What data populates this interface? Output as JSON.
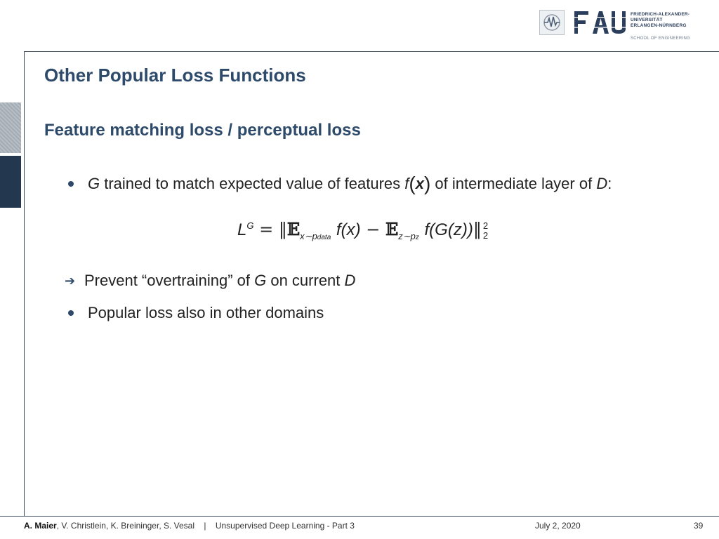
{
  "header": {
    "logo": {
      "letters": "FAU",
      "lines": [
        "FRIEDRICH-ALEXANDER-",
        "UNIVERSITÄT",
        "ERLANGEN-NÜRNBERG"
      ],
      "school": "SCHOOL OF ENGINEERING",
      "brand_color": "#2b3f5c"
    }
  },
  "slide": {
    "title": "Other Popular Loss Functions",
    "subtitle": "Feature matching loss / perceptual loss",
    "bullet1": {
      "g": "G",
      "text_a": " trained to match expected value of features ",
      "f": "f",
      "x": "x",
      "text_b": " of intermediate layer of ",
      "d": "D",
      "colon": ":"
    },
    "formula": {
      "lhs": "L",
      "lhs_sup": "G",
      "eq": "=",
      "norm_open": "‖",
      "expect": "𝔼",
      "sub1": "x∼p",
      "sub1_sub": "data",
      "term1": "f(x)",
      "minus": "−",
      "sub2": "z∼p",
      "sub2_sub": "z",
      "term2": "f(G(z))",
      "norm_close": "‖",
      "norm_sup": "2",
      "norm_sub": "2"
    },
    "arrow_item": {
      "text_a": "Prevent “overtraining” of ",
      "g": "G",
      "text_b": " on current ",
      "d": "D"
    },
    "bullet2": "Popular loss also in other domains"
  },
  "footer": {
    "author_bold": "A. Maier",
    "authors_rest": ", V. Christlein, K. Breininger, S. Vesal",
    "separator": "|",
    "lecture": "Unsupervised Deep Learning - Part 3",
    "date": "July 2, 2020",
    "page": "39"
  },
  "colors": {
    "title": "#2e4a6b",
    "side_dark": "#23384f",
    "side_light": "#aab2ba"
  }
}
